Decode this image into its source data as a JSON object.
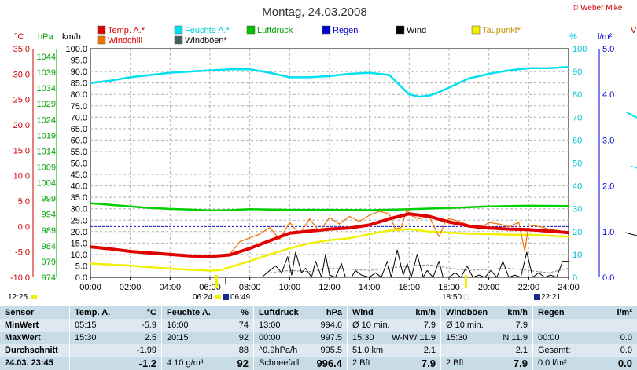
{
  "header": {
    "title": "Montag, 24.03.2008",
    "copyright": "© Weber Mike",
    "edge_label_right": "V"
  },
  "legend": [
    {
      "label": "Temp. A.*",
      "color": "#e00000",
      "text_color": "#e00000"
    },
    {
      "label": "Feuchte A.*",
      "color": "#00e0f0",
      "text_color": "#00d0e0"
    },
    {
      "label": "Luftdruck",
      "color": "#00c000",
      "text_color": "#00a000"
    },
    {
      "label": "Regen",
      "color": "#0000cc",
      "text_color": "#0000cc"
    },
    {
      "label": "Wind",
      "color": "#000000",
      "text_color": "#000000"
    },
    {
      "label": "Taupunkt*",
      "color": "#f0f000",
      "text_color": "#c09000"
    },
    {
      "label": "Windchill",
      "color": "#f07000",
      "text_color": "#e00000"
    },
    {
      "label": "Windböen*",
      "color": "#406060",
      "text_color": "#000000"
    }
  ],
  "axis_units": {
    "temp": "°C",
    "pressure": "hPa",
    "wind": "km/h",
    "humidity": "%",
    "rain": "l/m²"
  },
  "timeline_markers": {
    "left": "12:25",
    "sunrise": "06:24",
    "moon": "06:49",
    "sunset": "18:50",
    "moonset": "22:21"
  },
  "chart_data": {
    "type": "line",
    "title": "Montag, 24.03.2008",
    "x_ticks": [
      "00:00",
      "02:00",
      "04:00",
      "06:00",
      "08:00",
      "10:00",
      "12:00",
      "14:00",
      "16:00",
      "18:00",
      "20:00",
      "22:00",
      "24:00"
    ],
    "xlim": [
      0,
      24
    ],
    "axes": {
      "temp": {
        "label": "°C",
        "ylim": [
          -10,
          35
        ],
        "ticks": [
          "35.0",
          "30.0",
          "25.0",
          "20.0",
          "15.0",
          "10.0",
          "5.0",
          "0.0",
          "-5.0",
          "-10.0"
        ]
      },
      "pressure": {
        "label": "hPa",
        "ylim": [
          974,
          1046.5
        ],
        "ticks": [
          "1044",
          "1039",
          "1034",
          "1029",
          "1024",
          "1019",
          "1014",
          "1009",
          "1004",
          "999",
          "994",
          "989",
          "984",
          "979",
          "974"
        ]
      },
      "wind": {
        "label": "km/h",
        "ylim": [
          0,
          100
        ],
        "ticks": [
          "100.0",
          "95.0",
          "90.0",
          "85.0",
          "80.0",
          "75.0",
          "70.0",
          "65.0",
          "60.0",
          "55.0",
          "50.0",
          "45.0",
          "40.0",
          "35.0",
          "30.0",
          "25.0",
          "20.0",
          "15.0",
          "10.0",
          "5.0",
          "0.0"
        ]
      },
      "humidity": {
        "label": "%",
        "ylim": [
          0,
          100
        ],
        "ticks": [
          "100",
          "90",
          "80",
          "70",
          "60",
          "50",
          "40",
          "30",
          "20",
          "10",
          "0"
        ]
      },
      "rain": {
        "label": "l/m²",
        "ylim": [
          0,
          5
        ],
        "ticks": [
          "5.0",
          "4.0",
          "3.0",
          "2.0",
          "1.0",
          "0.0"
        ]
      }
    },
    "zero_line_temp": 0,
    "series": [
      {
        "name": "Feuchte A.*",
        "axis": "humidity",
        "color": "#00e0f0",
        "width": 2.5,
        "x": [
          0,
          1,
          2,
          3,
          4,
          5,
          6,
          7,
          8,
          9,
          10,
          11,
          12,
          13,
          14,
          15,
          16,
          16.5,
          17,
          17.5,
          18,
          19,
          20,
          21,
          22,
          23,
          24
        ],
        "y": [
          85,
          86,
          87.5,
          88.5,
          89.5,
          90,
          90.5,
          91,
          91,
          89.5,
          87.5,
          87.5,
          88,
          89,
          89.5,
          88.5,
          80,
          79,
          79.5,
          81,
          83,
          87,
          89,
          90.5,
          91.5,
          91.5,
          92
        ]
      },
      {
        "name": "Luftdruck",
        "axis": "pressure",
        "color": "#00d000",
        "width": 2.5,
        "x": [
          0,
          1,
          2,
          3,
          4,
          5,
          6,
          7,
          8,
          9,
          10,
          12,
          14,
          16,
          18,
          20,
          22,
          24
        ],
        "y": [
          997.5,
          997,
          996.5,
          996,
          995.7,
          995.5,
          995.2,
          995.3,
          995.6,
          995.5,
          995.4,
          995.4,
          995.3,
          995.6,
          996,
          996.5,
          996.7,
          996.6
        ]
      },
      {
        "name": "Taupunkt*",
        "axis": "temp",
        "color": "#f0f000",
        "width": 2.5,
        "x": [
          0,
          1,
          2,
          3,
          4,
          5,
          6,
          6.5,
          7,
          8,
          9,
          10,
          11,
          12,
          13,
          14,
          15,
          16,
          17,
          18,
          19,
          20,
          21,
          22,
          23,
          24
        ],
        "y": [
          -7.3,
          -7.5,
          -7.7,
          -8,
          -8.3,
          -8.5,
          -8.7,
          -8.6,
          -8,
          -6.8,
          -5.5,
          -4.3,
          -3.3,
          -2.7,
          -2.3,
          -1.5,
          -0.8,
          -0.5,
          -1,
          -1.2,
          -1.4,
          -1.5,
          -1.6,
          -1.6,
          -1.8,
          -2
        ]
      },
      {
        "name": "Windchill",
        "axis": "temp",
        "color": "#f07000",
        "width": 1.2,
        "x": [
          0,
          1,
          2,
          3,
          4,
          5,
          6,
          7,
          7.5,
          8,
          8.5,
          9,
          9.5,
          10,
          10.5,
          11,
          11.5,
          12,
          12.5,
          13,
          13.5,
          14,
          14.5,
          15,
          15.3,
          15.6,
          15.9,
          16,
          16.5,
          17,
          17.5,
          17.8,
          18,
          18.5,
          19,
          19.5,
          20,
          20.5,
          21,
          21.5,
          21.8,
          22,
          22.5,
          23,
          23.5,
          24
        ],
        "y": [
          -4,
          -4.5,
          -5,
          -5.3,
          -5.6,
          -5.8,
          -6,
          -5.4,
          -3,
          -2.2,
          -1.5,
          -0.2,
          -2.5,
          0.8,
          -1.5,
          1.5,
          -1,
          1.8,
          0.5,
          2,
          1,
          2.2,
          3,
          2.5,
          -0.5,
          -0.2,
          3.5,
          2.3,
          1.5,
          2,
          -2,
          0.8,
          1.6,
          1,
          0.3,
          -0.5,
          0.8,
          0.5,
          0,
          0.8,
          -4.8,
          0.3,
          0,
          -0.5,
          -0.8,
          -1.2
        ]
      },
      {
        "name": "Temp. A.*",
        "axis": "temp",
        "color": "#e00000",
        "width": 4,
        "x": [
          0,
          1,
          2,
          3,
          4,
          5,
          6,
          7,
          8,
          9,
          10,
          11,
          12,
          13,
          14,
          15,
          16,
          17,
          18,
          19,
          20,
          21,
          22,
          23,
          24
        ],
        "y": [
          -4,
          -4.4,
          -4.9,
          -5.2,
          -5.5,
          -5.8,
          -5.9,
          -5.6,
          -4.3,
          -2.8,
          -1.3,
          -0.9,
          -0.5,
          -0.3,
          0.3,
          1.5,
          2.5,
          2,
          0.9,
          0.1,
          -0.3,
          -0.5,
          -0.6,
          -0.9,
          -1.2
        ]
      },
      {
        "name": "Windböen*",
        "axis": "wind",
        "color": "#7a8a8a",
        "width": 1,
        "dash": "3,2",
        "x": [
          9,
          10,
          11,
          12,
          13,
          14,
          15,
          16,
          17,
          18,
          19,
          20,
          21,
          22,
          23,
          24
        ],
        "y": [
          2,
          3,
          2.5,
          4,
          3.5,
          3,
          4,
          5,
          5.5,
          4,
          3,
          3.5,
          4,
          3,
          2,
          4
        ]
      },
      {
        "name": "Wind",
        "axis": "wind",
        "color": "#000000",
        "width": 1,
        "x": [
          8.6,
          9,
          9.3,
          9.6,
          9.9,
          10.1,
          10.3,
          10.6,
          10.8,
          11.1,
          11.3,
          11.6,
          11.8,
          12,
          12.3,
          12.6,
          12.8,
          13.1,
          13.3,
          13.6,
          14,
          14.3,
          14.6,
          14.9,
          15.1,
          15.4,
          15.7,
          15.9,
          16.1,
          16.4,
          16.7,
          16.9,
          17.2,
          17.5,
          17.7,
          18,
          18.3,
          18.6,
          18.9,
          19.2,
          19.5,
          19.8,
          20.1,
          20.4,
          20.7,
          21,
          21.3,
          21.6,
          21.9,
          22.2,
          22.5,
          22.8,
          23.1,
          23.4,
          23.7,
          24
        ],
        "y": [
          0,
          3,
          5,
          2,
          9,
          1,
          11,
          2,
          4,
          0,
          7,
          0,
          10,
          1,
          0,
          6,
          0,
          0,
          3,
          1,
          0,
          2,
          0,
          7,
          0,
          12,
          1,
          6,
          0,
          10,
          0,
          3,
          0,
          7,
          0,
          0,
          2,
          0,
          5,
          0,
          1,
          0,
          3,
          0,
          7,
          0,
          1,
          0,
          11,
          0,
          2,
          0,
          1,
          0,
          7,
          7
        ]
      }
    ]
  },
  "stats": {
    "sensor": {
      "title": "Sensor",
      "rows": [
        "MinWert",
        "MaxWert",
        "Durchschnitt"
      ],
      "current": "24.03. 23:45"
    },
    "temp": {
      "title": "Temp. A.",
      "unit": "°C",
      "rows": [
        [
          "05:15",
          "-5.9"
        ],
        [
          "15:30",
          "2.5"
        ],
        [
          "",
          "-1.99"
        ]
      ],
      "current": "-1.2"
    },
    "humidity": {
      "title": "Feuchte A.",
      "unit": "%",
      "rows": [
        [
          "16:00",
          "74"
        ],
        [
          "20:15",
          "92"
        ],
        [
          "",
          "88"
        ]
      ],
      "current_note": "4.10 g/m³",
      "current": "92"
    },
    "pressure": {
      "title": "Luftdruck",
      "unit": "hPa",
      "rows": [
        [
          "13:00",
          "994.6"
        ],
        [
          "00:00",
          "997.5"
        ],
        [
          "^0.9hPa/h",
          "995.5"
        ]
      ],
      "current_note": "Schneefall",
      "current": "996.4"
    },
    "wind": {
      "title": "Wind",
      "unit": "km/h",
      "rows": [
        [
          "Ø 10 min.",
          "7.9"
        ],
        [
          "15:30",
          "W-NW 11.9"
        ],
        [
          "51.0 km",
          "2.1"
        ]
      ],
      "current_note": "2 Bft",
      "current": "7.9"
    },
    "gust": {
      "title": "Windböen",
      "unit": "km/h",
      "rows": [
        [
          "Ø 10 min.",
          "7.9"
        ],
        [
          "15:30",
          "N 11.9"
        ],
        [
          "",
          "2.1"
        ]
      ],
      "current_note": "2 Bft",
      "current": "7.9"
    },
    "rain": {
      "title": "Regen",
      "unit": "l/m²",
      "rows": [
        [
          "",
          ""
        ],
        [
          "00:00",
          "0.0"
        ],
        [
          "Gesamt:",
          "0.0"
        ]
      ],
      "current_note": "0.0 l/m²",
      "current": "0.0"
    }
  }
}
